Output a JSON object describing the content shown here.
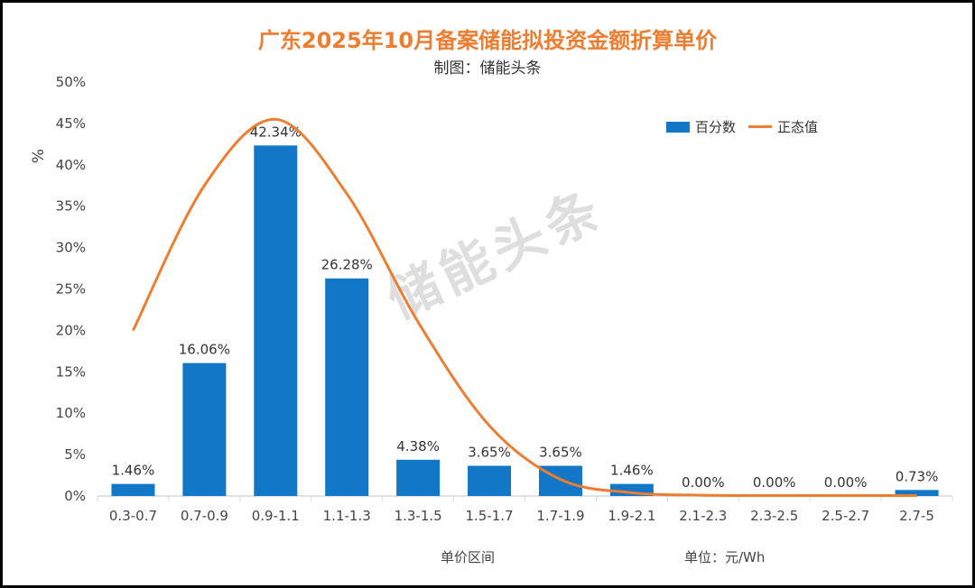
{
  "chart_data": {
    "type": "bar",
    "title": "广东2025年10月备案储能拟投资金额折算单价",
    "subtitle": "制图：储能头条",
    "xlabel": "单价区间",
    "unit_note": "单位：元/Wh",
    "ylabel": "%",
    "ylim": [
      0,
      50
    ],
    "yticks": [
      "0%",
      "5%",
      "10%",
      "15%",
      "20%",
      "25%",
      "30%",
      "35%",
      "40%",
      "45%",
      "50%"
    ],
    "categories": [
      "0.3-0.7",
      "0.7-0.9",
      "0.9-1.1",
      "1.1-1.3",
      "1.3-1.5",
      "1.5-1.7",
      "1.7-1.9",
      "1.9-2.1",
      "2.1-2.3",
      "2.3-2.5",
      "2.5-2.7",
      "2.7-5"
    ],
    "series": [
      {
        "name": "百分数",
        "type": "bar",
        "color": "#1277C6",
        "values": [
          1.46,
          16.06,
          42.34,
          26.28,
          4.38,
          3.65,
          3.65,
          1.46,
          0.0,
          0.0,
          0.0,
          0.73
        ],
        "labels": [
          "1.46%",
          "16.06%",
          "42.34%",
          "26.28%",
          "4.38%",
          "3.65%",
          "3.65%",
          "1.46%",
          "0.00%",
          "0.00%",
          "0.00%",
          "0.73%"
        ]
      },
      {
        "name": "正态值",
        "type": "line",
        "color": "#ED7D31",
        "values": [
          20.0,
          37.5,
          45.5,
          36.5,
          21.0,
          8.5,
          2.0,
          0.4,
          0.1,
          0.05,
          0.05,
          0.05
        ]
      }
    ],
    "legend": "top-right",
    "grid": false,
    "watermark": "储能头条"
  }
}
